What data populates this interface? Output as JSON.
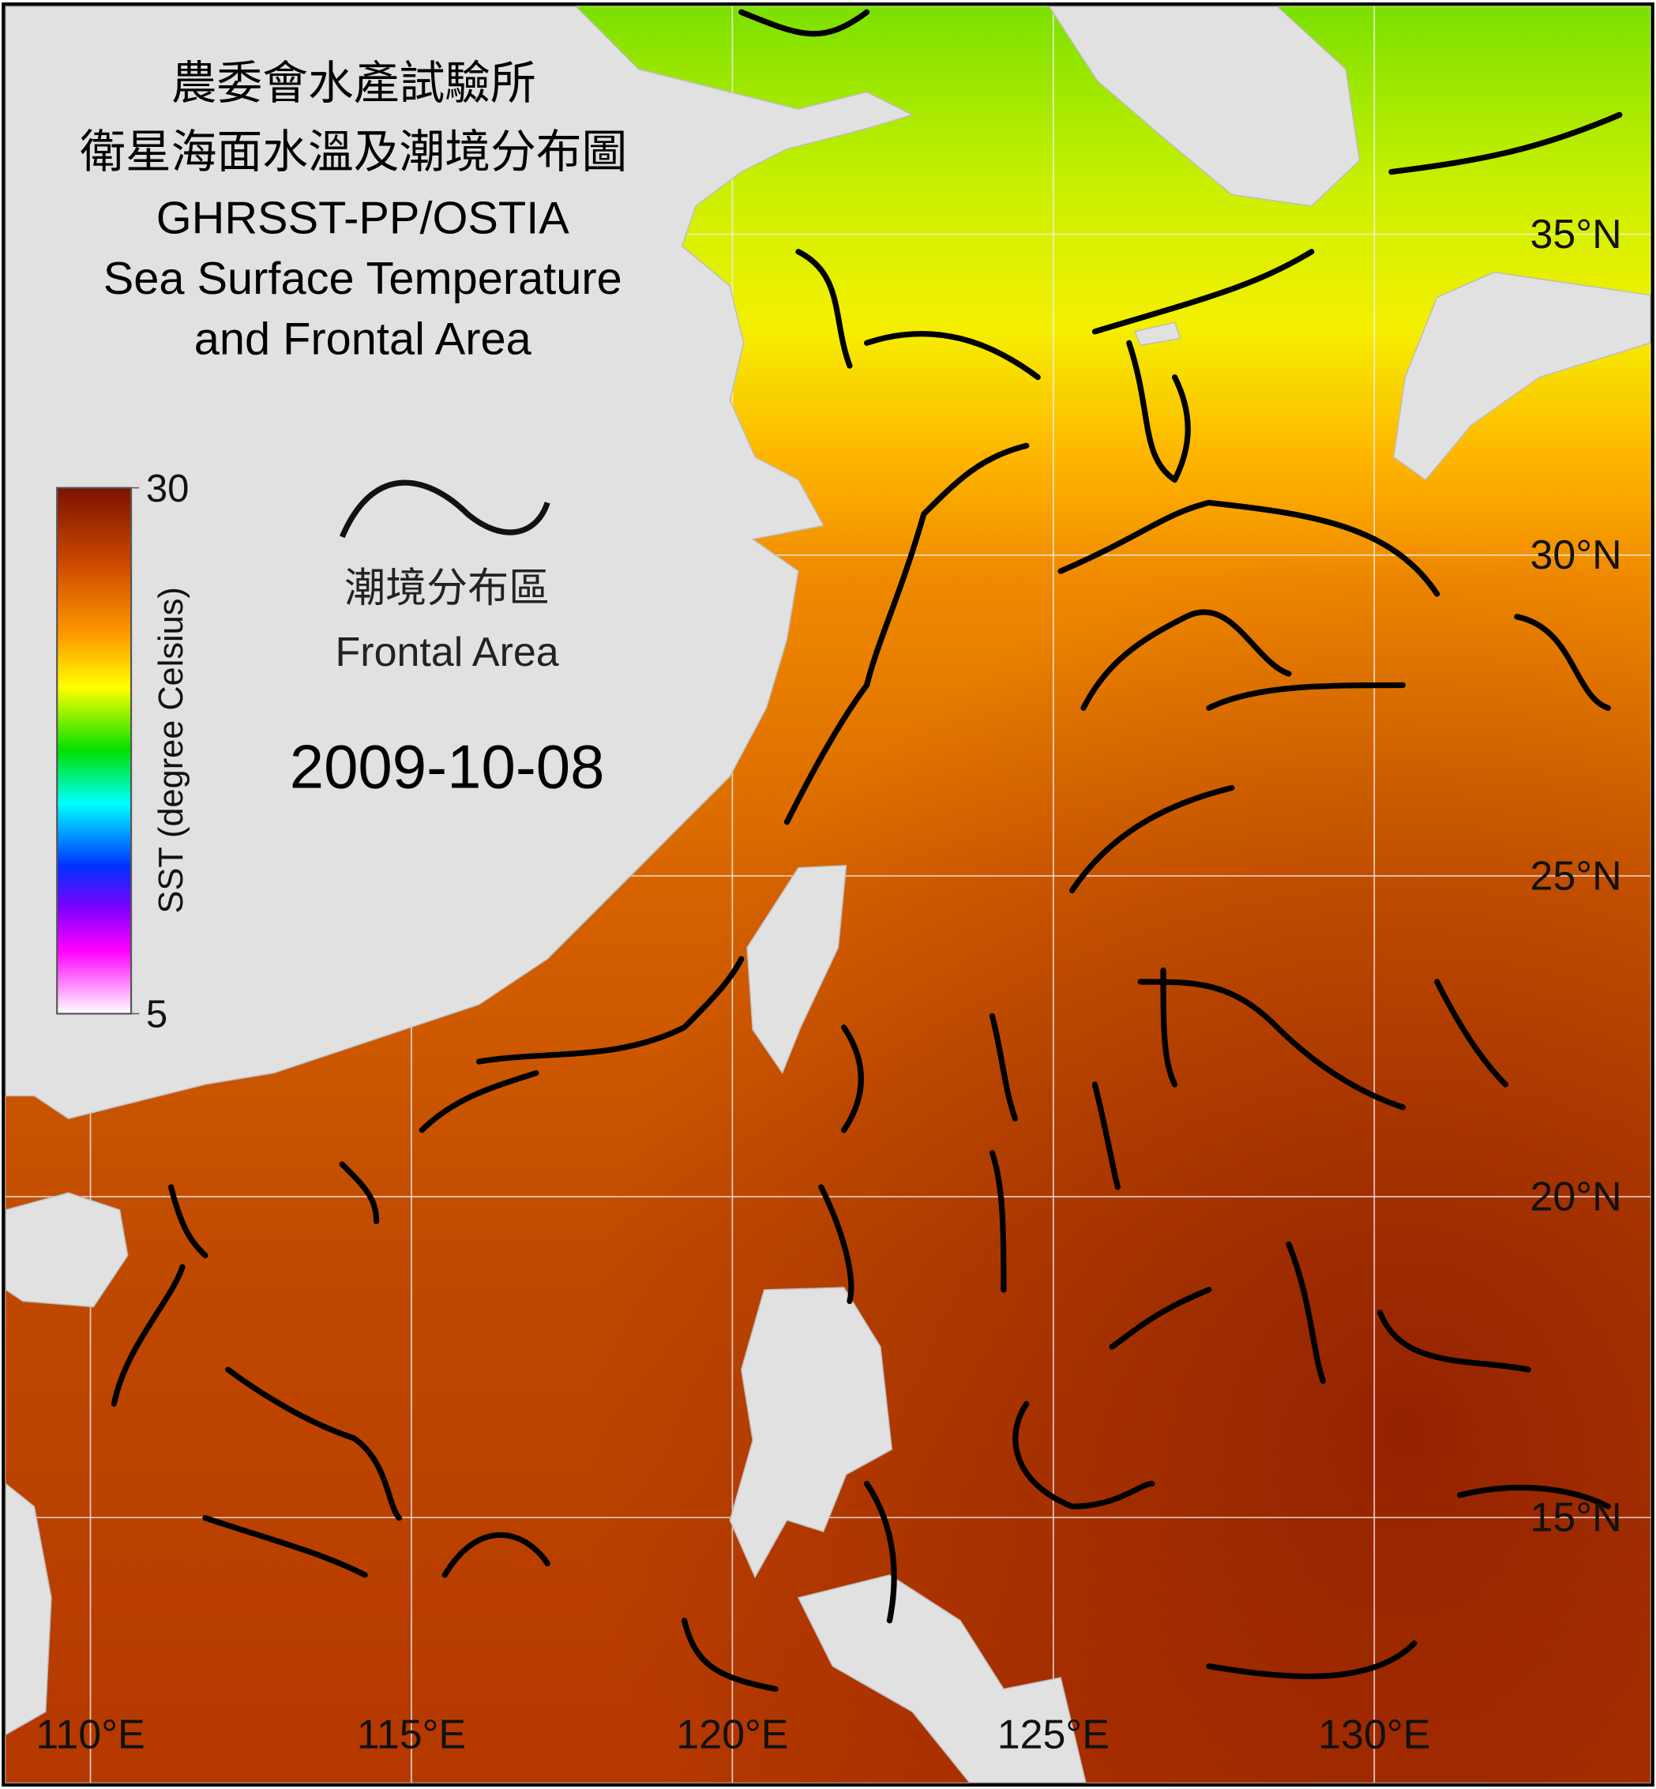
{
  "title": {
    "line1": "農委會水產試驗所",
    "line2": "衛星海面水溫及潮境分布圖",
    "line3": "GHRSST-PP/OSTIA",
    "line4": "Sea Surface Temperature",
    "line5": "and Frontal Area"
  },
  "legend": {
    "label_zh": "潮境分布區",
    "label_en": "Frontal Area"
  },
  "date": "2009-10-08",
  "colorbar": {
    "label": "SST (degree Celsius)",
    "lim": [
      5,
      30
    ],
    "ticks": [
      30,
      5
    ]
  },
  "map": {
    "lonlim": [
      108.68,
      134.3
    ],
    "latlim": [
      10.87,
      38.55
    ],
    "lat_ticks": [
      {
        "value": 35,
        "label": "35°N"
      },
      {
        "value": 30,
        "label": "30°N"
      },
      {
        "value": 25,
        "label": "25°N"
      },
      {
        "value": 20,
        "label": "20°N"
      },
      {
        "value": 15,
        "label": "15°N"
      }
    ],
    "lon_ticks": [
      {
        "value": 110,
        "label": "110°E"
      },
      {
        "value": 115,
        "label": "115°E"
      },
      {
        "value": 120,
        "label": "120°E"
      },
      {
        "value": 125,
        "label": "125°E"
      },
      {
        "value": 130,
        "label": "130°E"
      }
    ]
  }
}
